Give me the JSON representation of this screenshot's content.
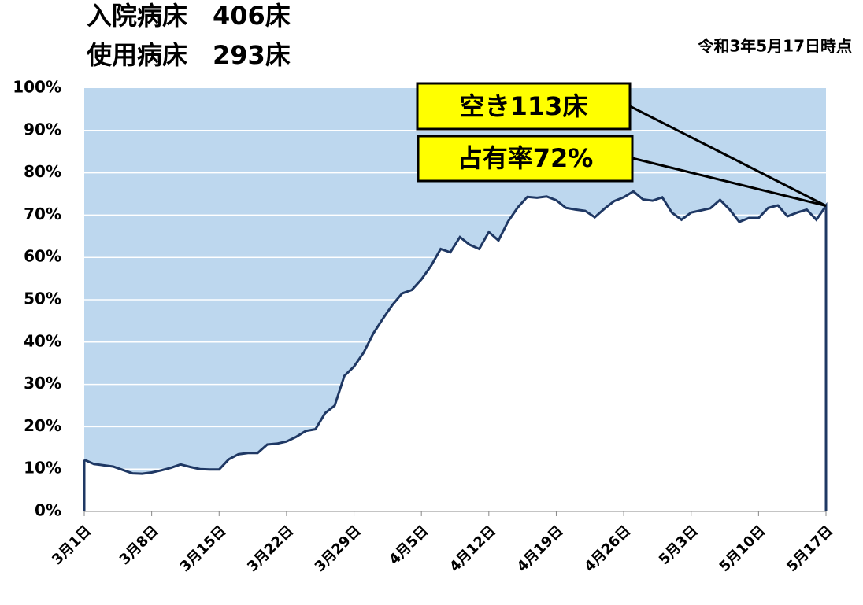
{
  "chart_data": {
    "type": "area",
    "title_lines": [
      "入院病床　406床",
      "使用病床　293床"
    ],
    "subtitle": "令和3年5月17日時点",
    "annotations": [
      "空き113床",
      "占有率72%"
    ],
    "categories": [
      "3月1日",
      null,
      null,
      null,
      null,
      null,
      null,
      "3月8日",
      null,
      null,
      null,
      null,
      null,
      null,
      "3月15日",
      null,
      null,
      null,
      null,
      null,
      null,
      "3月22日",
      null,
      null,
      null,
      null,
      null,
      null,
      "3月29日",
      null,
      null,
      null,
      null,
      null,
      null,
      "4月5日",
      null,
      null,
      null,
      null,
      null,
      null,
      "4月12日",
      null,
      null,
      null,
      null,
      null,
      null,
      "4月19日",
      null,
      null,
      null,
      null,
      null,
      null,
      "4月26日",
      null,
      null,
      null,
      null,
      null,
      null,
      "5月3日",
      null,
      null,
      null,
      null,
      null,
      null,
      "5月10日",
      null,
      null,
      null,
      null,
      null,
      null,
      "5月17日"
    ],
    "values": [
      12.2,
      11.2,
      10.9,
      10.6,
      9.8,
      9.0,
      8.9,
      9.2,
      9.7,
      10.3,
      11.1,
      10.5,
      10.0,
      9.9,
      9.9,
      12.3,
      13.5,
      13.8,
      13.8,
      15.8,
      16.0,
      16.5,
      17.6,
      19.0,
      19.4,
      23.2,
      25.0,
      32.0,
      34.2,
      37.5,
      42.0,
      45.5,
      48.8,
      51.5,
      52.3,
      54.8,
      58.0,
      62.0,
      61.2,
      64.8,
      63.0,
      62.0,
      66.0,
      64.0,
      68.5,
      71.8,
      74.3,
      74.1,
      74.4,
      73.5,
      71.7,
      71.3,
      71.0,
      69.5,
      71.5,
      73.3,
      74.2,
      75.6,
      73.7,
      73.4,
      74.2,
      70.6,
      68.9,
      70.6,
      71.1,
      71.6,
      73.6,
      71.3,
      68.4,
      69.3,
      69.3,
      71.7,
      72.3,
      69.7,
      70.6,
      71.3,
      68.9,
      72.2
    ],
    "color": "#1f3864",
    "background_color": "#bdd7ee",
    "ylim": [
      0,
      100
    ],
    "yticks": [
      {
        "value": 0,
        "label": "0%"
      },
      {
        "value": 10,
        "label": "10%"
      },
      {
        "value": 20,
        "label": "20%"
      },
      {
        "value": 30,
        "label": "30%"
      },
      {
        "value": 40,
        "label": "40%"
      },
      {
        "value": 50,
        "label": "50%"
      },
      {
        "value": 60,
        "label": "60%"
      },
      {
        "value": 70,
        "label": "70%"
      },
      {
        "value": 80,
        "label": "80%"
      },
      {
        "value": 90,
        "label": "90%"
      },
      {
        "value": 100,
        "label": "100%"
      }
    ],
    "grid": true
  }
}
